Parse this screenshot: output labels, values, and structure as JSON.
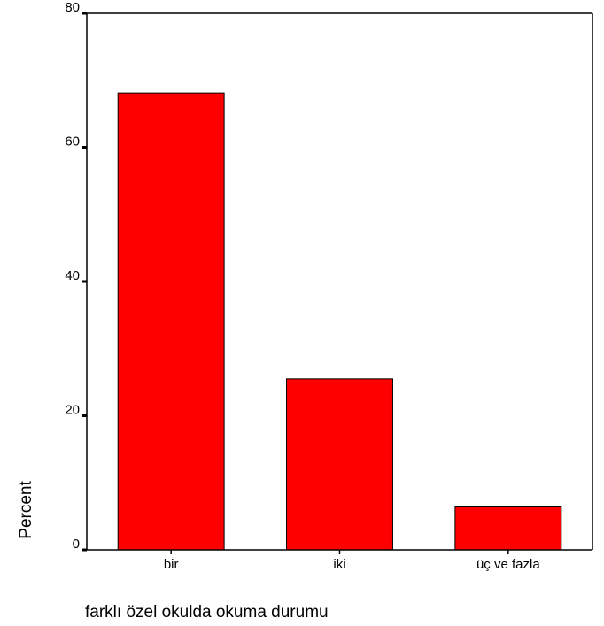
{
  "chart_data": {
    "type": "bar",
    "categories": [
      "bir",
      "iki",
      "üç ve fazla"
    ],
    "values": [
      68.1,
      25.5,
      6.4
    ],
    "xlabel": "farklı özel okulda okuma durumu",
    "ylabel": "Percent",
    "ylim": [
      0,
      80
    ],
    "yticks": [
      0,
      20,
      40,
      60,
      80
    ],
    "grid": false,
    "bar_color": "#FF0000"
  }
}
